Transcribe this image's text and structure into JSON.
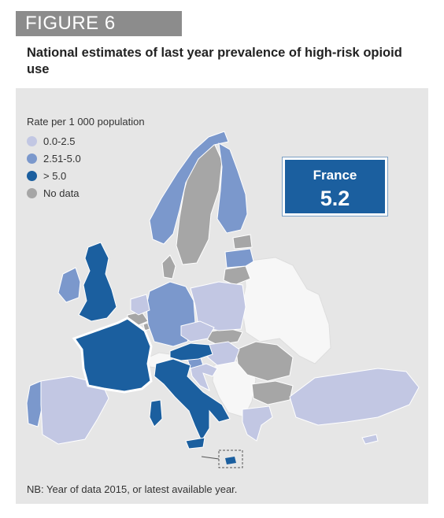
{
  "figure_label": "FIGURE 6",
  "title": "National estimates of last year prevalence of high-risk opioid use",
  "legend": {
    "title": "Rate per 1 000 population",
    "items": [
      {
        "label": "0.0-2.5",
        "color": "#c2c7e3"
      },
      {
        "label": "2.51-5.0",
        "color": "#7b98cc"
      },
      {
        "label": "> 5.0",
        "color": "#1b5f9f"
      },
      {
        "label": "No data",
        "color": "#a6a6a6"
      }
    ]
  },
  "highlight": {
    "country": "France",
    "value": "5.2"
  },
  "colors": {
    "panel": "#e6e6e6",
    "non_member": "#f7f7f7",
    "border": "#ffffff"
  },
  "countries": [
    {
      "name": "United Kingdom",
      "category": "> 5.0"
    },
    {
      "name": "Ireland",
      "category": "2.51-5.0"
    },
    {
      "name": "France",
      "category": "> 5.0"
    },
    {
      "name": "Italy",
      "category": "> 5.0"
    },
    {
      "name": "Austria",
      "category": "> 5.0"
    },
    {
      "name": "Malta",
      "category": "> 5.0"
    },
    {
      "name": "Portugal",
      "category": "2.51-5.0"
    },
    {
      "name": "Germany",
      "category": "2.51-5.0"
    },
    {
      "name": "Finland",
      "category": "2.51-5.0"
    },
    {
      "name": "Norway",
      "category": "2.51-5.0"
    },
    {
      "name": "Latvia",
      "category": "2.51-5.0"
    },
    {
      "name": "Slovenia",
      "category": "2.51-5.0"
    },
    {
      "name": "Spain",
      "category": "0.0-2.5"
    },
    {
      "name": "Poland",
      "category": "0.0-2.5"
    },
    {
      "name": "Czech Republic",
      "category": "0.0-2.5"
    },
    {
      "name": "Netherlands",
      "category": "0.0-2.5"
    },
    {
      "name": "Hungary",
      "category": "0.0-2.5"
    },
    {
      "name": "Croatia",
      "category": "0.0-2.5"
    },
    {
      "name": "Turkey",
      "category": "0.0-2.5"
    },
    {
      "name": "Greece",
      "category": "0.0-2.5"
    },
    {
      "name": "Cyprus",
      "category": "0.0-2.5"
    },
    {
      "name": "Sweden",
      "category": "No data"
    },
    {
      "name": "Denmark",
      "category": "No data"
    },
    {
      "name": "Belgium",
      "category": "No data"
    },
    {
      "name": "Estonia",
      "category": "No data"
    },
    {
      "name": "Lithuania",
      "category": "No data"
    },
    {
      "name": "Slovakia",
      "category": "No data"
    },
    {
      "name": "Romania",
      "category": "No data"
    },
    {
      "name": "Bulgaria",
      "category": "No data"
    },
    {
      "name": "Luxembourg",
      "category": "No data"
    }
  ],
  "footnote": "NB: Year of data 2015, or latest available year."
}
